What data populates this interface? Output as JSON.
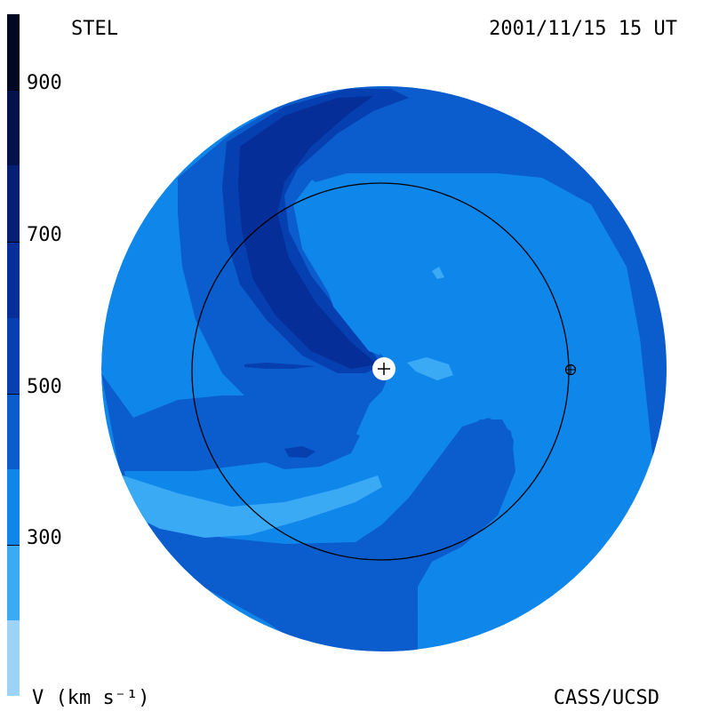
{
  "header": {
    "station": "STEL",
    "datetime": "2001/11/15 15 UT"
  },
  "footer": {
    "unit_label": "V (km s⁻¹)",
    "credit": "CASS/UCSD"
  },
  "colorbar": {
    "ticks": [
      "900",
      "700",
      "500",
      "300"
    ],
    "colors": [
      "#9dd3f7",
      "#3aaaf4",
      "#0f86ea",
      "#0b5ccc",
      "#063fb0",
      "#062e98",
      "#041f74",
      "#03124d",
      "#010822"
    ]
  },
  "map": {
    "palette": {
      "v300": "#3aaaf4",
      "v400": "#0f86ea",
      "v500": "#0b5ccc",
      "v600": "#063fb0",
      "v700": "#062e98"
    },
    "sun_symbol": "+",
    "earth_symbol": "⊕"
  }
}
